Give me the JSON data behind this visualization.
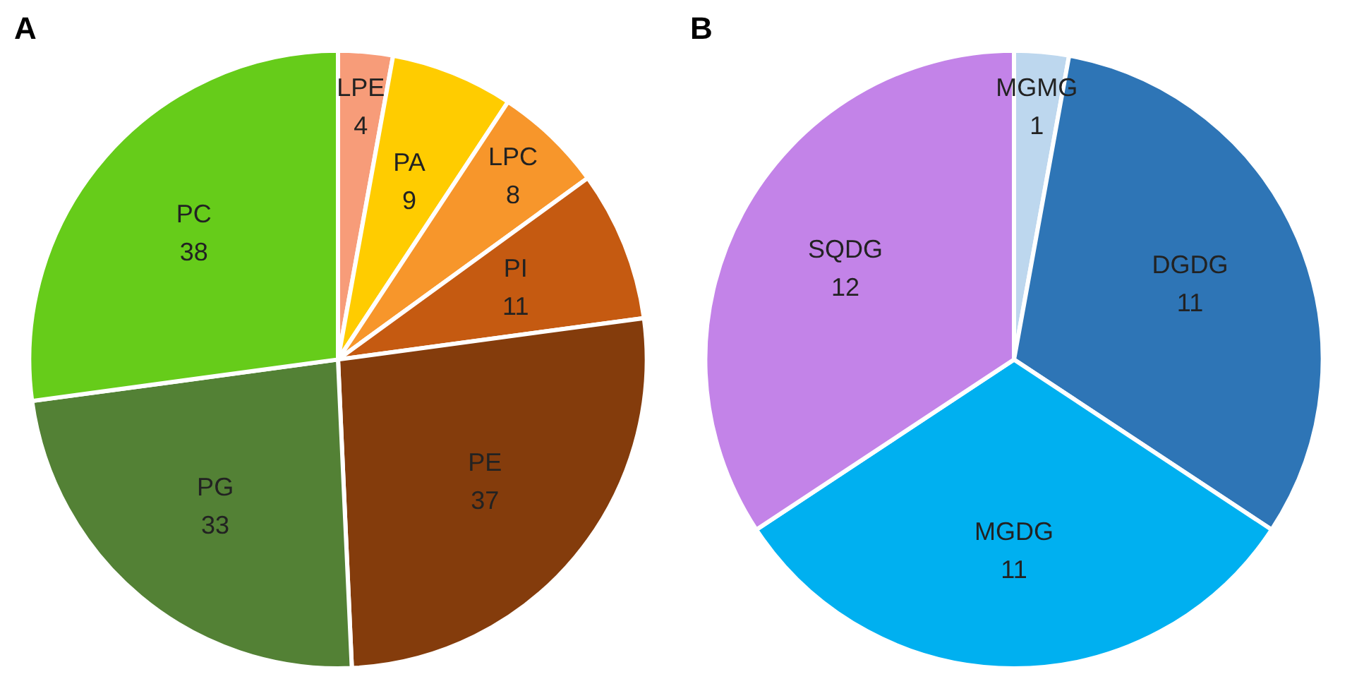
{
  "chart_data": [
    {
      "type": "pie",
      "title": "A",
      "categories": [
        "LPE",
        "PA",
        "LPC",
        "PI",
        "PE",
        "PG",
        "PC"
      ],
      "values": [
        4,
        9,
        8,
        11,
        37,
        33,
        38
      ],
      "colors": [
        "#f79c79",
        "#ffcc00",
        "#f7962b",
        "#c55a11",
        "#843c0c",
        "#538135",
        "#66cc1a"
      ],
      "data_labels": true
    },
    {
      "type": "pie",
      "title": "B",
      "categories": [
        "MGMG",
        "DGDG",
        "MGDG",
        "SQDG"
      ],
      "values": [
        1,
        11,
        11,
        12
      ],
      "colors": [
        "#bdd7ee",
        "#2e75b6",
        "#00b0f0",
        "#c383e8"
      ],
      "data_labels": true
    }
  ]
}
